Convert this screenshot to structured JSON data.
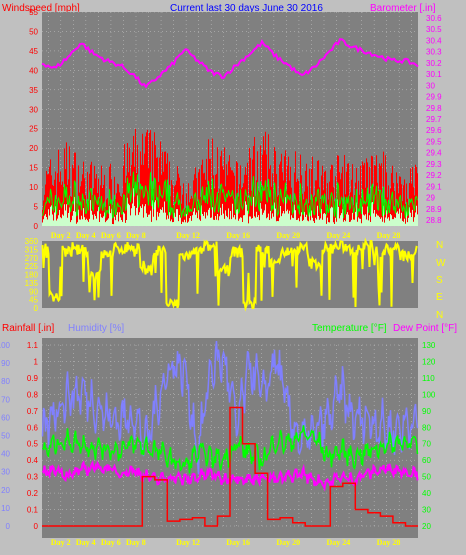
{
  "header": {
    "left": "Windspeed [mph]",
    "center": "Current last 30 days June 30 2016",
    "right": "Barometer [.in]"
  },
  "compass_letters": [
    "N",
    "W",
    "S",
    "E",
    "N"
  ],
  "bottom_header": {
    "rain": "Rainfall [.in]",
    "humidity": "Humidity [%]",
    "temperature": "Temperature [°F]",
    "dewpoint": "Dew Point [°F]"
  },
  "colors": {
    "background": "#c0c0c0",
    "plot_bg": "#808080",
    "grid": "#c8c8c8",
    "wind_gust": "#ff0000",
    "wind_avg": "#00ff00",
    "wind_low": "#ccffcc",
    "barometer": "#ff00ff",
    "direction": "#ffff00",
    "rain": "#ff0000",
    "humidity": "#8080ff",
    "temperature": "#00ff00",
    "dewpoint": "#ff00ff",
    "header_left": "#ff0000",
    "header_center": "#0000ff",
    "header_right": "#ff00ff",
    "day_label": "#ffff00"
  },
  "chart_data": [
    {
      "type": "line",
      "name": "wind-barometer",
      "xlabel": "",
      "x_ticks": [
        "Day 2",
        "Day 4",
        "Day 6",
        "Day 8",
        "Day 12",
        "Day 16",
        "Day 20",
        "Day 24",
        "Day 28"
      ],
      "x_tick_days": [
        2,
        4,
        6,
        8,
        12,
        16,
        20,
        24,
        28
      ],
      "x_days": [
        1,
        2,
        3,
        4,
        5,
        6,
        7,
        8,
        9,
        10,
        11,
        12,
        13,
        14,
        15,
        16,
        17,
        18,
        19,
        20,
        21,
        22,
        23,
        24,
        25,
        26,
        27,
        28,
        29,
        30
      ],
      "ylabel_left": "Windspeed [mph]",
      "ylim_left": [
        0,
        55
      ],
      "yticks_left": [
        0,
        5,
        10,
        15,
        20,
        25,
        30,
        35,
        40,
        45,
        50,
        55
      ],
      "ylabel_right": "Barometer [.in]",
      "ylim_right": [
        29.8,
        30.6
      ],
      "yticks_right": [
        "28.8",
        "28.9",
        "29",
        "29.1",
        "29.2",
        "29.3",
        "29.4",
        "29.5",
        "29.6",
        "29.7",
        "29.8",
        "29.9",
        "30",
        "30.1",
        "30.2",
        "30.3",
        "30.4",
        "30.5",
        "30.6"
      ],
      "series": [
        {
          "name": "Windspeed",
          "values": [
            12,
            17,
            19,
            15,
            14,
            13,
            16,
            21,
            22,
            20,
            14,
            12,
            13,
            21,
            17,
            14,
            19,
            21,
            18,
            16,
            18,
            15,
            14,
            16,
            14,
            15,
            17,
            14,
            13,
            15
          ]
        },
        {
          "name": "Barometer",
          "values": [
            30.2,
            30.15,
            30.25,
            30.38,
            30.28,
            30.22,
            30.18,
            30.1,
            29.98,
            30.08,
            30.18,
            30.32,
            30.22,
            30.12,
            30.08,
            30.18,
            30.28,
            30.38,
            30.26,
            30.18,
            30.08,
            30.16,
            30.28,
            30.4,
            30.34,
            30.3,
            30.26,
            30.22,
            30.22,
            30.18
          ]
        }
      ]
    },
    {
      "type": "line",
      "name": "wind-direction",
      "x_days": [
        1,
        2,
        3,
        4,
        5,
        6,
        7,
        8,
        9,
        10,
        11,
        12,
        13,
        14,
        15,
        16,
        17,
        18,
        19,
        20,
        21,
        22,
        23,
        24,
        25,
        26,
        27,
        28,
        29,
        30
      ],
      "ylim": [
        0,
        360
      ],
      "yticks": [
        0,
        45,
        90,
        135,
        180,
        225,
        270,
        315,
        360
      ],
      "series": [
        {
          "name": "Direction",
          "values": [
            320,
            60,
            300,
            310,
            180,
            290,
            320,
            330,
            200,
            310,
            20,
            280,
            300,
            330,
            200,
            300,
            20,
            310,
            260,
            300,
            320,
            240,
            320,
            330,
            320,
            340,
            300,
            320,
            280,
            300
          ]
        }
      ]
    },
    {
      "type": "line",
      "name": "rain-humidity-temp",
      "x_ticks": [
        "Day 2",
        "Day 4",
        "Day 6",
        "Day 8",
        "Day 12",
        "Day 16",
        "Day 20",
        "Day 24",
        "Day 28"
      ],
      "x_tick_days": [
        2,
        4,
        6,
        8,
        12,
        16,
        20,
        24,
        28
      ],
      "x_days": [
        1,
        2,
        3,
        4,
        5,
        6,
        7,
        8,
        9,
        10,
        11,
        12,
        13,
        14,
        15,
        16,
        17,
        18,
        19,
        20,
        21,
        22,
        23,
        24,
        25,
        26,
        27,
        28,
        29,
        30
      ],
      "ylabel_left": "Rainfall [.in]",
      "ylim_rain": [
        0,
        1.1
      ],
      "yticks_rain": [
        "0",
        "0.1",
        "0.2",
        "0.3",
        "0.4",
        "0.5",
        "0.6",
        "0.7",
        "0.8",
        "0.9",
        "1",
        "1.1"
      ],
      "ylabel_humidity": "Humidity [%]",
      "ylim_humidity": [
        0,
        100
      ],
      "yticks_humidity": [
        0,
        10,
        20,
        30,
        40,
        50,
        60,
        70,
        80,
        90,
        100
      ],
      "ylabel_right": "Temperature [°F]",
      "ylabel_right2": "Dew Point [°F]",
      "ylim_temp": [
        20,
        130
      ],
      "yticks_temp": [
        20,
        30,
        40,
        50,
        60,
        70,
        80,
        90,
        100,
        110,
        120,
        130
      ],
      "series": [
        {
          "name": "Rainfall",
          "values": [
            0,
            0,
            0,
            0,
            0,
            0,
            0,
            0,
            0.3,
            0.28,
            0.03,
            0.04,
            0.05,
            0,
            0.06,
            0.72,
            0.5,
            0.32,
            0.04,
            0.05,
            0.02,
            0,
            0,
            0.24,
            0.26,
            0.1,
            0.08,
            0.06,
            0.02,
            0
          ]
        },
        {
          "name": "Humidity",
          "values": [
            50,
            65,
            72,
            74,
            68,
            60,
            58,
            62,
            45,
            72,
            90,
            85,
            40,
            88,
            92,
            55,
            90,
            72,
            93,
            62,
            46,
            52,
            58,
            75,
            58,
            60,
            56,
            52,
            56,
            60
          ]
        },
        {
          "name": "Temperature",
          "values": [
            65,
            70,
            72,
            70,
            68,
            67,
            66,
            70,
            68,
            65,
            60,
            56,
            65,
            62,
            60,
            70,
            64,
            60,
            72,
            70,
            76,
            74,
            62,
            66,
            62,
            65,
            68,
            70,
            72,
            68
          ]
        },
        {
          "name": "Dew Point",
          "values": [
            52,
            55,
            50,
            54,
            56,
            55,
            52,
            54,
            50,
            48,
            50,
            48,
            50,
            52,
            48,
            50,
            48,
            50,
            48,
            50,
            52,
            48,
            46,
            50,
            48,
            52,
            54,
            55,
            53,
            52
          ]
        }
      ]
    }
  ]
}
